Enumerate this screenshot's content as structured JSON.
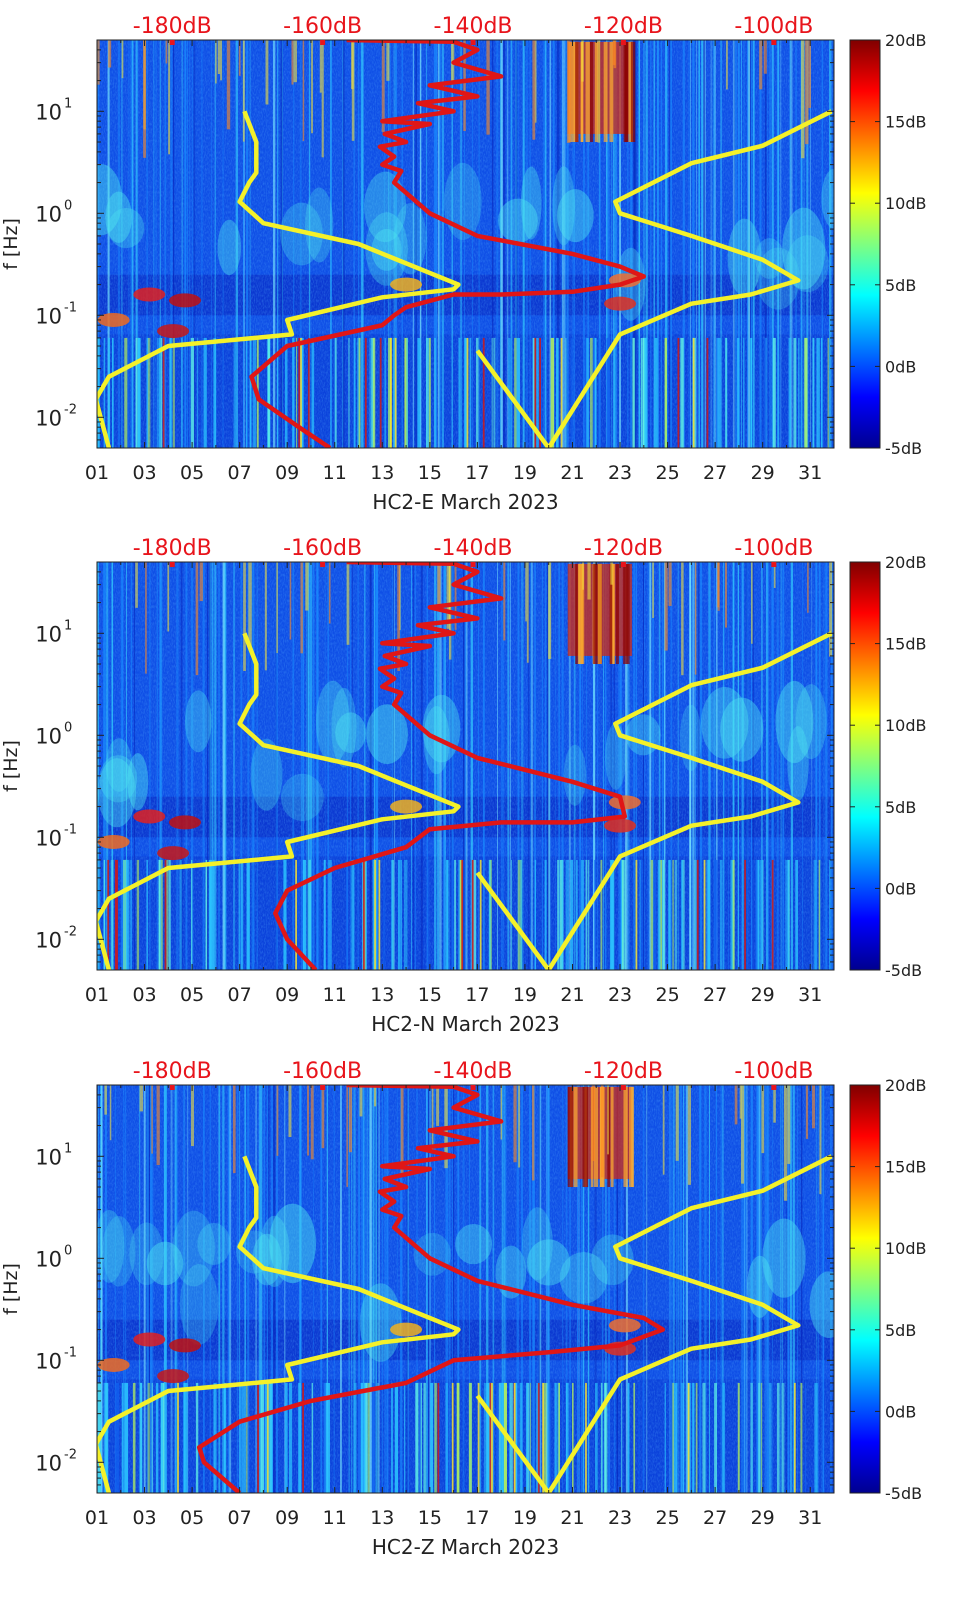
{
  "colorbar_ticks": [
    "20dB",
    "15dB",
    "10dB",
    "5dB",
    "0dB",
    "-5dB"
  ],
  "top_axis_ticks": [
    "-180dB",
    "-160dB",
    "-140dB",
    "-120dB",
    "-100dB"
  ],
  "x_ticks": [
    "01",
    "03",
    "05",
    "07",
    "09",
    "11",
    "13",
    "15",
    "17",
    "19",
    "21",
    "23",
    "25",
    "27",
    "29",
    "31"
  ],
  "ylabel": "f [Hz]",
  "colors": {
    "top_axis": "#e8141b",
    "yellow_line": "#f4f12a",
    "red_line": "#e01616"
  },
  "chart_data": [
    {
      "type": "heatmap",
      "title": "HC2-E March 2023",
      "xlabel": "HC2-E March 2023",
      "ylabel": "f [Hz]",
      "x_range": [
        1,
        32
      ],
      "ylim": [
        0.005,
        50
      ],
      "yscale": "log",
      "colorbar_range_db": [
        -5,
        20
      ],
      "top_axis_range_db": [
        -190,
        -92
      ],
      "yellow_left_curve": {
        "x": [
          7.2,
          7.7,
          7.7,
          7.4,
          7.0,
          8.0,
          12.0,
          16.2,
          16.0,
          13.0,
          9.0,
          9.2,
          4.0,
          1.5,
          0.95,
          1.5
        ],
        "f": [
          10,
          5,
          2.5,
          2,
          1.3,
          0.8,
          0.5,
          0.2,
          0.18,
          0.15,
          0.09,
          0.065,
          0.05,
          0.025,
          0.015,
          0.005
        ]
      },
      "yellow_right_curve": {
        "x": [
          17.0,
          20.0,
          23.0,
          26.0,
          28.5,
          30.5,
          29.0,
          26.0,
          23.0,
          22.8,
          26.0,
          29.0,
          31.9
        ],
        "f": [
          0.045,
          0.005,
          0.065,
          0.13,
          0.16,
          0.22,
          0.35,
          0.6,
          1.0,
          1.3,
          3.1,
          4.6,
          10
        ]
      },
      "red_curve": {
        "x": [
          10.8,
          9.5,
          7.8,
          7.5,
          9.0,
          13.0,
          13.5,
          14.0,
          16.0,
          18.0,
          21.0,
          23.0,
          24.0,
          23.0,
          21.0,
          17.0,
          15.0,
          13.5,
          13.8,
          13.0,
          13.5,
          12.9,
          14.0,
          13.1,
          15.0,
          13.0,
          16.0,
          14.5,
          17.0,
          15.0,
          18.0,
          16.0,
          17.0,
          16.0,
          11.5
        ],
        "f": [
          0.005,
          0.008,
          0.015,
          0.025,
          0.05,
          0.08,
          0.1,
          0.12,
          0.16,
          0.16,
          0.17,
          0.2,
          0.24,
          0.3,
          0.4,
          0.6,
          1.0,
          2.0,
          2.6,
          3.0,
          3.6,
          4.5,
          5.0,
          6.0,
          7.5,
          8.0,
          10.0,
          12.0,
          14.0,
          18.0,
          22.0,
          30.0,
          40.0,
          48.0,
          50.0
        ]
      }
    },
    {
      "type": "heatmap",
      "title": "HC2-N March 2023",
      "xlabel": "HC2-N March 2023",
      "ylabel": "f [Hz]",
      "x_range": [
        1,
        32
      ],
      "ylim": [
        0.005,
        50
      ],
      "yscale": "log",
      "colorbar_range_db": [
        -5,
        20
      ],
      "top_axis_range_db": [
        -190,
        -92
      ],
      "yellow_left_curve": {
        "x": [
          7.2,
          7.7,
          7.7,
          7.4,
          7.0,
          8.0,
          12.0,
          16.2,
          16.0,
          13.0,
          9.0,
          9.2,
          4.0,
          1.5,
          0.95,
          1.5
        ],
        "f": [
          10,
          5,
          2.5,
          2,
          1.3,
          0.8,
          0.5,
          0.2,
          0.18,
          0.15,
          0.09,
          0.065,
          0.05,
          0.025,
          0.015,
          0.005
        ]
      },
      "yellow_right_curve": {
        "x": [
          17.0,
          20.0,
          23.0,
          26.0,
          28.5,
          30.5,
          29.0,
          26.0,
          23.0,
          22.8,
          26.0,
          29.0,
          31.9
        ],
        "f": [
          0.045,
          0.005,
          0.065,
          0.13,
          0.16,
          0.22,
          0.35,
          0.6,
          1.0,
          1.3,
          3.1,
          4.6,
          10
        ]
      },
      "red_curve": {
        "x": [
          10.2,
          9.0,
          8.5,
          9.0,
          11.0,
          14.0,
          15.0,
          18.0,
          21.0,
          23.2,
          23.0,
          21.0,
          17.0,
          15.0,
          13.5,
          13.8,
          13.0,
          13.5,
          12.9,
          14.0,
          13.1,
          15.0,
          13.0,
          16.0,
          14.5,
          17.0,
          15.0,
          18.0,
          16.0,
          17.0,
          16.0,
          11.5
        ],
        "f": [
          0.005,
          0.01,
          0.018,
          0.03,
          0.05,
          0.08,
          0.12,
          0.14,
          0.14,
          0.16,
          0.25,
          0.35,
          0.6,
          1.0,
          2.0,
          2.6,
          3.0,
          3.6,
          4.5,
          5.0,
          6.0,
          7.5,
          8.0,
          10.0,
          12.0,
          14.0,
          18.0,
          22.0,
          30.0,
          40.0,
          48.0,
          50.0
        ]
      }
    },
    {
      "type": "heatmap",
      "title": "HC2-Z March 2023",
      "xlabel": "HC2-Z March 2023",
      "ylabel": "f [Hz]",
      "x_range": [
        1,
        32
      ],
      "ylim": [
        0.005,
        50
      ],
      "yscale": "log",
      "colorbar_range_db": [
        -5,
        20
      ],
      "top_axis_range_db": [
        -190,
        -92
      ],
      "yellow_left_curve": {
        "x": [
          7.2,
          7.7,
          7.7,
          7.4,
          7.0,
          8.0,
          12.0,
          16.2,
          16.0,
          13.0,
          9.0,
          9.2,
          4.0,
          1.5,
          0.95,
          1.5
        ],
        "f": [
          10,
          5,
          2.5,
          2,
          1.3,
          0.8,
          0.5,
          0.2,
          0.18,
          0.15,
          0.09,
          0.065,
          0.05,
          0.025,
          0.015,
          0.005
        ]
      },
      "yellow_right_curve": {
        "x": [
          17.0,
          20.0,
          23.0,
          26.0,
          28.5,
          30.5,
          29.0,
          26.0,
          23.0,
          22.8,
          26.0,
          29.0,
          31.9
        ],
        "f": [
          0.045,
          0.005,
          0.065,
          0.13,
          0.16,
          0.22,
          0.35,
          0.6,
          1.0,
          1.3,
          3.1,
          4.6,
          10
        ]
      },
      "red_curve": {
        "x": [
          7.0,
          5.5,
          5.3,
          7.0,
          10.0,
          14.0,
          16.0,
          20.0,
          23.0,
          24.8,
          24.0,
          21.0,
          17.0,
          15.0,
          13.5,
          13.8,
          13.0,
          13.5,
          12.9,
          14.0,
          13.1,
          15.0,
          13.0,
          16.0,
          14.5,
          17.0,
          15.0,
          18.0,
          16.0,
          17.0,
          16.0,
          11.5
        ],
        "f": [
          0.005,
          0.01,
          0.014,
          0.025,
          0.04,
          0.06,
          0.1,
          0.12,
          0.14,
          0.2,
          0.26,
          0.35,
          0.6,
          1.0,
          2.0,
          2.6,
          3.0,
          3.6,
          4.5,
          5.0,
          6.0,
          7.5,
          8.0,
          10.0,
          12.0,
          14.0,
          18.0,
          22.0,
          30.0,
          40.0,
          48.0,
          50.0
        ]
      }
    }
  ]
}
